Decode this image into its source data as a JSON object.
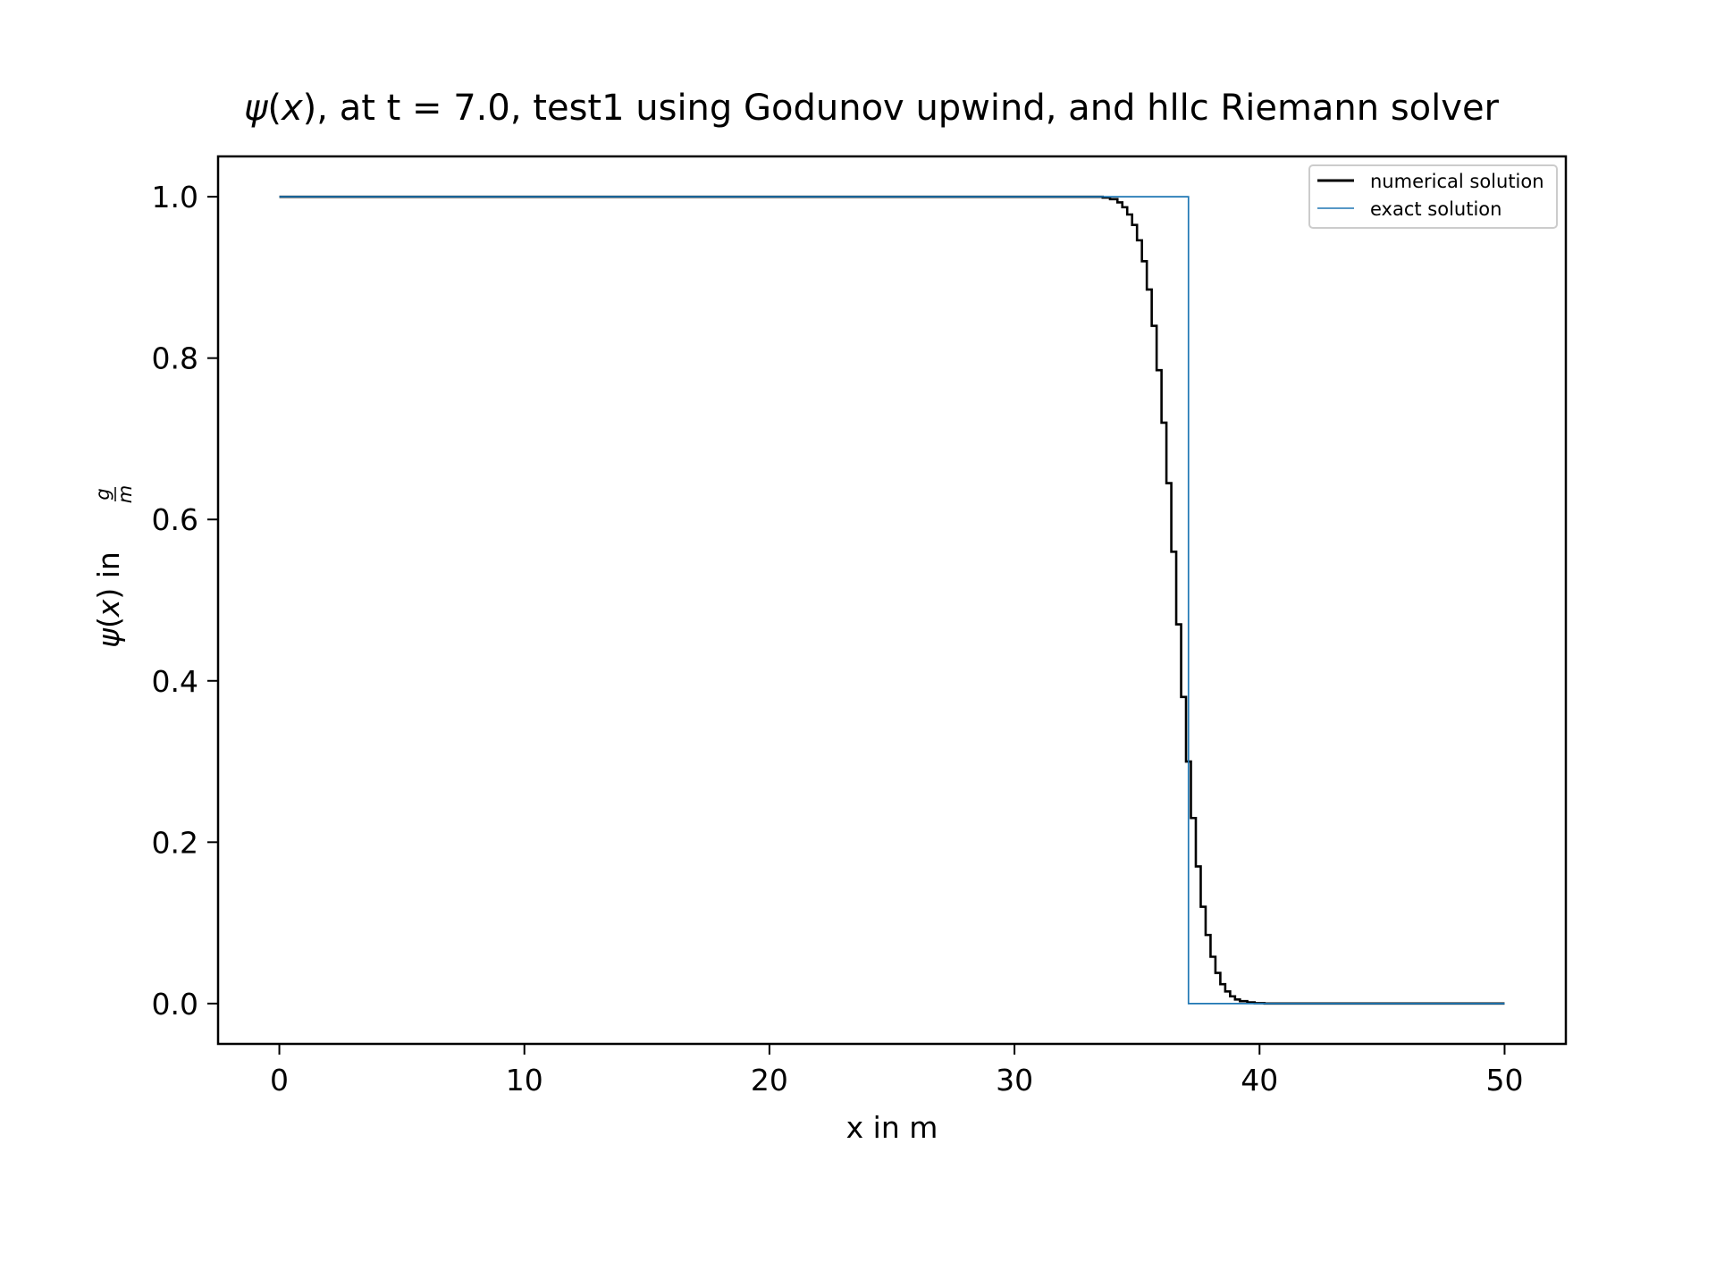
{
  "chart_data": {
    "type": "line",
    "title": {
      "psi": "ψ",
      "paren_open": "(",
      "x": "x",
      "rest": "), at t = 7.0, test1 using Godunov upwind, and hllc Riemann solver"
    },
    "xlabel": "x in m",
    "ylabel": {
      "psi": "ψ",
      "paren_open": "(",
      "x": "x",
      "mid": ") in ",
      "numerator": "g",
      "denominator": "m"
    },
    "xlim": [
      -2.5,
      52.5
    ],
    "ylim": [
      -0.05,
      1.05
    ],
    "xticks": [
      0,
      10,
      20,
      30,
      40,
      50
    ],
    "xtick_labels": [
      "0",
      "10",
      "20",
      "30",
      "40",
      "50"
    ],
    "yticks": [
      0.0,
      0.2,
      0.4,
      0.6,
      0.8,
      1.0
    ],
    "ytick_labels": [
      "0.0",
      "0.2",
      "0.4",
      "0.6",
      "0.8",
      "1.0"
    ],
    "grid": false,
    "legend_position": "top-right",
    "series": [
      {
        "name": "numerical solution",
        "color": "#000000",
        "style": "steps",
        "x": [
          0,
          33.2,
          33.6,
          33.9,
          34.2,
          34.4,
          34.6,
          34.8,
          35.0,
          35.2,
          35.4,
          35.6,
          35.8,
          36.0,
          36.2,
          36.4,
          36.6,
          36.8,
          37.0,
          37.2,
          37.4,
          37.6,
          37.8,
          38.0,
          38.2,
          38.4,
          38.6,
          38.8,
          39.0,
          39.2,
          39.5,
          39.8,
          40.2,
          50
        ],
        "y": [
          1.0,
          1.0,
          0.999,
          0.997,
          0.993,
          0.987,
          0.978,
          0.965,
          0.946,
          0.92,
          0.885,
          0.84,
          0.785,
          0.72,
          0.645,
          0.56,
          0.47,
          0.38,
          0.3,
          0.23,
          0.17,
          0.12,
          0.085,
          0.058,
          0.038,
          0.024,
          0.015,
          0.009,
          0.005,
          0.003,
          0.0015,
          0.0005,
          0.0,
          0.0
        ]
      },
      {
        "name": "exact solution",
        "color": "#1f77b4",
        "style": "steps",
        "x": [
          0,
          37.05,
          37.1,
          50
        ],
        "y": [
          1.0,
          1.0,
          0.0,
          0.0
        ]
      }
    ]
  }
}
